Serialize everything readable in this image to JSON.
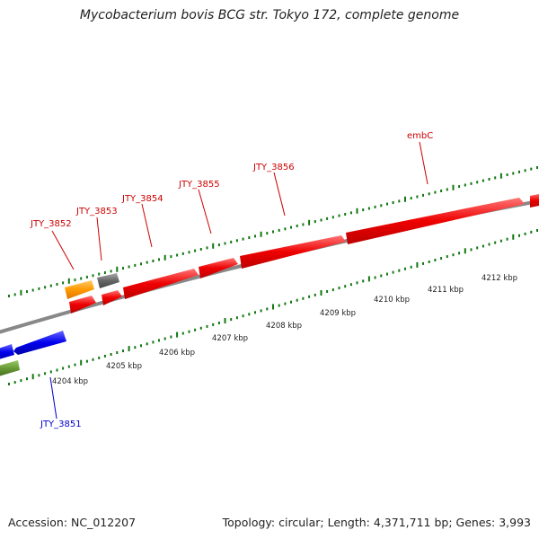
{
  "title": "Mycobacterium bovis BCG str. Tokyo 172, complete genome",
  "footer": {
    "accession": "Accession: NC_012207",
    "topology": "Topology: circular; Length: 4,371,711 bp; Genes: 3,993"
  },
  "colors": {
    "forward_gene": "#ee0000",
    "reverse_gene": "#0000ee",
    "rna_gene": "#ff9900",
    "pseudo_gene": "#666666",
    "other_gene": "#669933",
    "tick": "#117711",
    "backbone": "#888888"
  },
  "ticks": {
    "labels": [
      "4204 kbp",
      "4205 kbp",
      "4206 kbp",
      "4207 kbp",
      "4208 kbp",
      "4209 kbp",
      "4210 kbp",
      "4211 kbp",
      "4212 kbp"
    ]
  },
  "gene_labels": {
    "forward": [
      "JTY_3852",
      "JTY_3853",
      "JTY_3854",
      "JTY_3855",
      "JTY_3856",
      "embC"
    ],
    "reverse": [
      "JTY_3851"
    ]
  }
}
